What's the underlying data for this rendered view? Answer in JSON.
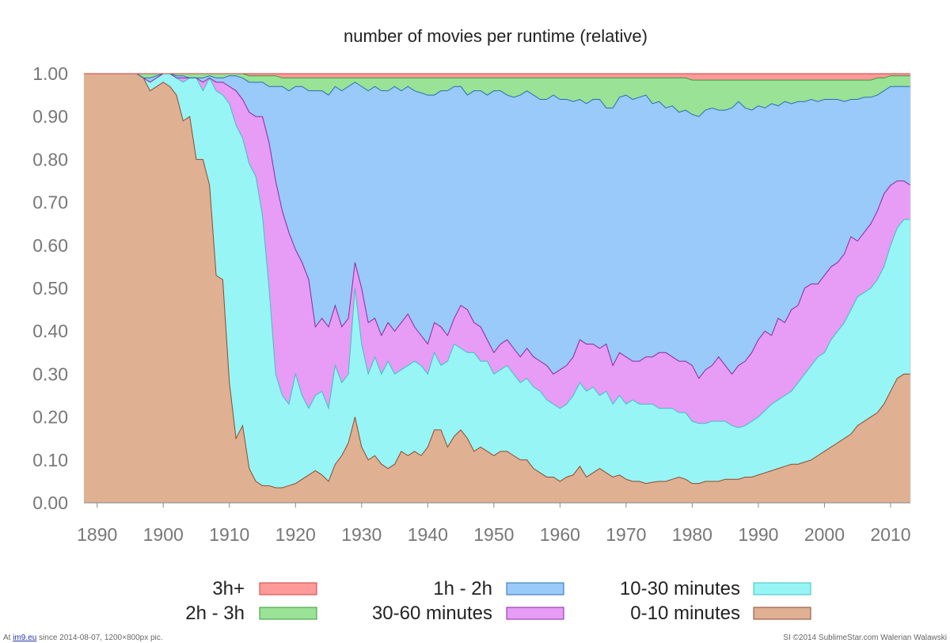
{
  "chart_data": {
    "type": "area",
    "stacked": true,
    "title": "number of movies per runtime (relative)",
    "xlabel": "",
    "ylabel": "",
    "xlim": [
      1888,
      2013
    ],
    "ylim": [
      0,
      1
    ],
    "x_ticks": [
      1890,
      1900,
      1910,
      1920,
      1930,
      1940,
      1950,
      1960,
      1970,
      1980,
      1990,
      2000,
      2010
    ],
    "x_tick_labels": [
      "1890",
      "1900",
      "1910",
      "1920",
      "1930",
      "1940",
      "1950",
      "1960",
      "1970",
      "1980",
      "1990",
      "2000",
      "2010"
    ],
    "y_ticks": [
      0,
      0.1,
      0.2,
      0.3,
      0.4,
      0.5,
      0.6,
      0.7,
      0.8,
      0.9,
      1.0
    ],
    "y_tick_labels": [
      "0.00",
      "0.10",
      "0.20",
      "0.30",
      "0.40",
      "0.50",
      "0.60",
      "0.70",
      "0.80",
      "0.90",
      "1.00"
    ],
    "grid": "horizontal",
    "legend_position": "bottom",
    "x": [
      1888,
      1895,
      1896,
      1897,
      1898,
      1900,
      1901,
      1902,
      1903,
      1904,
      1905,
      1906,
      1907,
      1908,
      1909,
      1910,
      1911,
      1912,
      1913,
      1914,
      1915,
      1916,
      1917,
      1918,
      1919,
      1920,
      1921,
      1922,
      1923,
      1924,
      1925,
      1926,
      1927,
      1928,
      1929,
      1930,
      1931,
      1932,
      1933,
      1934,
      1935,
      1936,
      1937,
      1938,
      1939,
      1940,
      1941,
      1942,
      1943,
      1944,
      1945,
      1946,
      1947,
      1948,
      1949,
      1950,
      1951,
      1952,
      1953,
      1954,
      1955,
      1956,
      1957,
      1958,
      1959,
      1960,
      1961,
      1962,
      1963,
      1964,
      1965,
      1966,
      1967,
      1968,
      1969,
      1970,
      1971,
      1972,
      1973,
      1974,
      1975,
      1976,
      1977,
      1978,
      1979,
      1980,
      1981,
      1982,
      1983,
      1984,
      1985,
      1986,
      1987,
      1988,
      1989,
      1990,
      1991,
      1992,
      1993,
      1994,
      1995,
      1996,
      1997,
      1998,
      1999,
      2000,
      2001,
      2002,
      2003,
      2004,
      2005,
      2006,
      2007,
      2008,
      2009,
      2010,
      2011,
      2012,
      2013
    ],
    "cumulative": true,
    "series": [
      {
        "name": "0-10 minutes",
        "color": "#e0b092",
        "values": [
          1.0,
          1.0,
          1.0,
          0.99,
          0.96,
          0.98,
          0.97,
          0.95,
          0.89,
          0.9,
          0.8,
          0.8,
          0.74,
          0.53,
          0.52,
          0.28,
          0.15,
          0.18,
          0.08,
          0.05,
          0.04,
          0.04,
          0.035,
          0.035,
          0.04,
          0.045,
          0.055,
          0.065,
          0.075,
          0.065,
          0.05,
          0.09,
          0.11,
          0.14,
          0.2,
          0.13,
          0.1,
          0.11,
          0.09,
          0.08,
          0.09,
          0.12,
          0.11,
          0.12,
          0.11,
          0.13,
          0.17,
          0.17,
          0.13,
          0.155,
          0.17,
          0.15,
          0.12,
          0.13,
          0.12,
          0.11,
          0.12,
          0.12,
          0.11,
          0.1,
          0.1,
          0.08,
          0.07,
          0.06,
          0.06,
          0.05,
          0.06,
          0.065,
          0.085,
          0.06,
          0.07,
          0.08,
          0.07,
          0.06,
          0.065,
          0.055,
          0.05,
          0.05,
          0.045,
          0.048,
          0.05,
          0.05,
          0.055,
          0.06,
          0.055,
          0.045,
          0.045,
          0.05,
          0.05,
          0.05,
          0.055,
          0.055,
          0.055,
          0.06,
          0.06,
          0.065,
          0.07,
          0.075,
          0.08,
          0.085,
          0.09,
          0.09,
          0.095,
          0.1,
          0.11,
          0.12,
          0.13,
          0.14,
          0.15,
          0.16,
          0.18,
          0.19,
          0.2,
          0.21,
          0.23,
          0.26,
          0.29,
          0.3,
          0.3
        ]
      },
      {
        "name": "10-30 minutes",
        "color": "#98f5f5",
        "values": [
          1.0,
          1.0,
          1.0,
          0.99,
          0.98,
          1.0,
          1.0,
          0.99,
          0.98,
          0.99,
          0.99,
          0.96,
          0.99,
          0.96,
          0.95,
          0.93,
          0.88,
          0.85,
          0.79,
          0.76,
          0.67,
          0.5,
          0.3,
          0.25,
          0.23,
          0.3,
          0.25,
          0.22,
          0.25,
          0.26,
          0.22,
          0.32,
          0.28,
          0.3,
          0.5,
          0.37,
          0.3,
          0.34,
          0.3,
          0.33,
          0.3,
          0.31,
          0.32,
          0.33,
          0.32,
          0.3,
          0.35,
          0.32,
          0.33,
          0.37,
          0.36,
          0.35,
          0.35,
          0.33,
          0.33,
          0.3,
          0.31,
          0.32,
          0.3,
          0.28,
          0.29,
          0.27,
          0.26,
          0.24,
          0.23,
          0.22,
          0.23,
          0.25,
          0.28,
          0.26,
          0.27,
          0.25,
          0.26,
          0.23,
          0.25,
          0.23,
          0.24,
          0.23,
          0.23,
          0.23,
          0.22,
          0.22,
          0.22,
          0.21,
          0.21,
          0.19,
          0.185,
          0.185,
          0.19,
          0.19,
          0.19,
          0.18,
          0.175,
          0.18,
          0.19,
          0.2,
          0.215,
          0.23,
          0.24,
          0.25,
          0.26,
          0.28,
          0.3,
          0.32,
          0.34,
          0.35,
          0.38,
          0.4,
          0.42,
          0.45,
          0.48,
          0.49,
          0.5,
          0.52,
          0.55,
          0.6,
          0.64,
          0.66,
          0.66
        ]
      },
      {
        "name": "30-60 minutes",
        "color": "#e79cf6",
        "values": [
          1.0,
          1.0,
          1.0,
          0.99,
          0.98,
          1.0,
          1.0,
          0.99,
          0.99,
          0.99,
          0.99,
          0.98,
          0.99,
          0.98,
          0.98,
          0.97,
          0.96,
          0.94,
          0.91,
          0.9,
          0.9,
          0.84,
          0.75,
          0.68,
          0.63,
          0.59,
          0.56,
          0.52,
          0.41,
          0.43,
          0.41,
          0.46,
          0.41,
          0.43,
          0.56,
          0.5,
          0.42,
          0.43,
          0.39,
          0.42,
          0.4,
          0.42,
          0.44,
          0.41,
          0.39,
          0.37,
          0.42,
          0.41,
          0.39,
          0.43,
          0.46,
          0.45,
          0.42,
          0.41,
          0.38,
          0.35,
          0.37,
          0.38,
          0.36,
          0.34,
          0.36,
          0.34,
          0.33,
          0.32,
          0.3,
          0.31,
          0.32,
          0.34,
          0.38,
          0.37,
          0.37,
          0.36,
          0.37,
          0.32,
          0.35,
          0.34,
          0.33,
          0.33,
          0.34,
          0.34,
          0.35,
          0.35,
          0.34,
          0.33,
          0.33,
          0.32,
          0.29,
          0.31,
          0.32,
          0.34,
          0.32,
          0.3,
          0.32,
          0.33,
          0.35,
          0.38,
          0.4,
          0.39,
          0.43,
          0.42,
          0.45,
          0.46,
          0.5,
          0.51,
          0.51,
          0.53,
          0.55,
          0.56,
          0.58,
          0.62,
          0.61,
          0.63,
          0.65,
          0.68,
          0.72,
          0.74,
          0.75,
          0.75,
          0.74
        ]
      },
      {
        "name": "1h - 2h",
        "color": "#99cafa",
        "values": [
          1.0,
          1.0,
          1.0,
          0.99,
          0.99,
          1.0,
          1.0,
          0.995,
          0.995,
          0.99,
          0.99,
          0.99,
          0.995,
          0.99,
          0.99,
          0.995,
          0.995,
          0.99,
          0.98,
          0.98,
          0.98,
          0.97,
          0.97,
          0.97,
          0.96,
          0.97,
          0.97,
          0.96,
          0.96,
          0.96,
          0.95,
          0.97,
          0.96,
          0.97,
          0.98,
          0.97,
          0.96,
          0.97,
          0.96,
          0.96,
          0.97,
          0.96,
          0.97,
          0.96,
          0.955,
          0.95,
          0.95,
          0.96,
          0.96,
          0.97,
          0.97,
          0.95,
          0.96,
          0.96,
          0.95,
          0.96,
          0.96,
          0.95,
          0.945,
          0.95,
          0.96,
          0.95,
          0.94,
          0.94,
          0.95,
          0.94,
          0.94,
          0.935,
          0.94,
          0.93,
          0.94,
          0.94,
          0.92,
          0.92,
          0.945,
          0.95,
          0.94,
          0.945,
          0.95,
          0.93,
          0.935,
          0.92,
          0.925,
          0.91,
          0.915,
          0.905,
          0.9,
          0.915,
          0.92,
          0.915,
          0.915,
          0.92,
          0.935,
          0.92,
          0.915,
          0.925,
          0.92,
          0.93,
          0.925,
          0.935,
          0.93,
          0.935,
          0.935,
          0.94,
          0.935,
          0.94,
          0.94,
          0.94,
          0.935,
          0.94,
          0.94,
          0.945,
          0.945,
          0.95,
          0.96,
          0.97,
          0.97,
          0.97,
          0.97
        ]
      },
      {
        "name": "2h - 3h",
        "color": "#99e296",
        "values": [
          1.0,
          1.0,
          1.0,
          1.0,
          1.0,
          1.0,
          1.0,
          1.0,
          1.0,
          1.0,
          1.0,
          1.0,
          1.0,
          1.0,
          1.0,
          1.0,
          1.0,
          1.0,
          0.995,
          0.995,
          0.995,
          0.995,
          0.995,
          0.99,
          0.99,
          0.99,
          0.99,
          0.99,
          0.99,
          0.99,
          0.99,
          0.99,
          0.99,
          0.99,
          0.99,
          0.99,
          0.99,
          0.99,
          0.99,
          0.99,
          0.99,
          0.99,
          0.99,
          0.99,
          0.99,
          0.99,
          0.99,
          0.99,
          0.99,
          0.99,
          0.99,
          0.99,
          0.99,
          0.99,
          0.99,
          0.99,
          0.99,
          0.99,
          0.99,
          0.99,
          0.99,
          0.99,
          0.99,
          0.99,
          0.99,
          0.99,
          0.99,
          0.99,
          0.99,
          0.99,
          0.99,
          0.99,
          0.99,
          0.99,
          0.99,
          0.99,
          0.99,
          0.99,
          0.99,
          0.99,
          0.99,
          0.99,
          0.99,
          0.99,
          0.99,
          0.985,
          0.985,
          0.985,
          0.985,
          0.985,
          0.985,
          0.985,
          0.985,
          0.985,
          0.985,
          0.985,
          0.985,
          0.985,
          0.985,
          0.985,
          0.985,
          0.985,
          0.985,
          0.985,
          0.985,
          0.985,
          0.985,
          0.985,
          0.985,
          0.985,
          0.985,
          0.985,
          0.985,
          0.99,
          0.99,
          0.995,
          0.995,
          0.995,
          0.995
        ]
      },
      {
        "name": "3h+",
        "color": "#fe9a9a",
        "values": [
          1.0,
          1.0,
          1.0,
          1.0,
          1.0,
          1.0,
          1.0,
          1.0,
          1.0,
          1.0,
          1.0,
          1.0,
          1.0,
          1.0,
          1.0,
          1.0,
          1.0,
          1.0,
          1.0,
          1.0,
          1.0,
          1.0,
          1.0,
          1.0,
          1.0,
          1.0,
          1.0,
          1.0,
          1.0,
          1.0,
          1.0,
          1.0,
          1.0,
          1.0,
          1.0,
          1.0,
          1.0,
          1.0,
          1.0,
          1.0,
          1.0,
          1.0,
          1.0,
          1.0,
          1.0,
          1.0,
          1.0,
          1.0,
          1.0,
          1.0,
          1.0,
          1.0,
          1.0,
          1.0,
          1.0,
          1.0,
          1.0,
          1.0,
          1.0,
          1.0,
          1.0,
          1.0,
          1.0,
          1.0,
          1.0,
          1.0,
          1.0,
          1.0,
          1.0,
          1.0,
          1.0,
          1.0,
          1.0,
          1.0,
          1.0,
          1.0,
          1.0,
          1.0,
          1.0,
          1.0,
          1.0,
          1.0,
          1.0,
          1.0,
          1.0,
          1.0,
          1.0,
          1.0,
          1.0,
          1.0,
          1.0,
          1.0,
          1.0,
          1.0,
          1.0,
          1.0,
          1.0,
          1.0,
          1.0,
          1.0,
          1.0,
          1.0,
          1.0,
          1.0,
          1.0,
          1.0,
          1.0,
          1.0,
          1.0,
          1.0,
          1.0,
          1.0,
          1.0,
          1.0,
          1.0,
          1.0,
          1.0,
          1.0,
          1.0
        ]
      }
    ],
    "stroke_colors": {
      "3h+": "#d04040",
      "2h - 3h": "#3a9a3a",
      "1h - 2h": "#2a6fb0",
      "30-60 minutes": "#8a2aa0",
      "10-30 minutes": "#40c0c0",
      "0-10 minutes": "#8a4a30"
    },
    "legend": [
      {
        "label": "3h+",
        "color": "#fe9a9a",
        "stroke": "#d04040"
      },
      {
        "label": "2h - 3h",
        "color": "#99e296",
        "stroke": "#3a9a3a"
      },
      {
        "label": "1h - 2h",
        "color": "#99cafa",
        "stroke": "#2a6fb0"
      },
      {
        "label": "30-60 minutes",
        "color": "#e79cf6",
        "stroke": "#8a2aa0"
      },
      {
        "label": "10-30 minutes",
        "color": "#98f5f5",
        "stroke": "#40c0c0"
      },
      {
        "label": "0-10 minutes",
        "color": "#e0b092",
        "stroke": "#8a4a30"
      }
    ]
  },
  "footer": {
    "left_prefix": "At",
    "left_link": "im9.eu",
    "left_suffix": "since 2014-08-07, 1200×800px pic.",
    "right": "SI ©2014 SublimeStar.com Walerian Walawski"
  }
}
